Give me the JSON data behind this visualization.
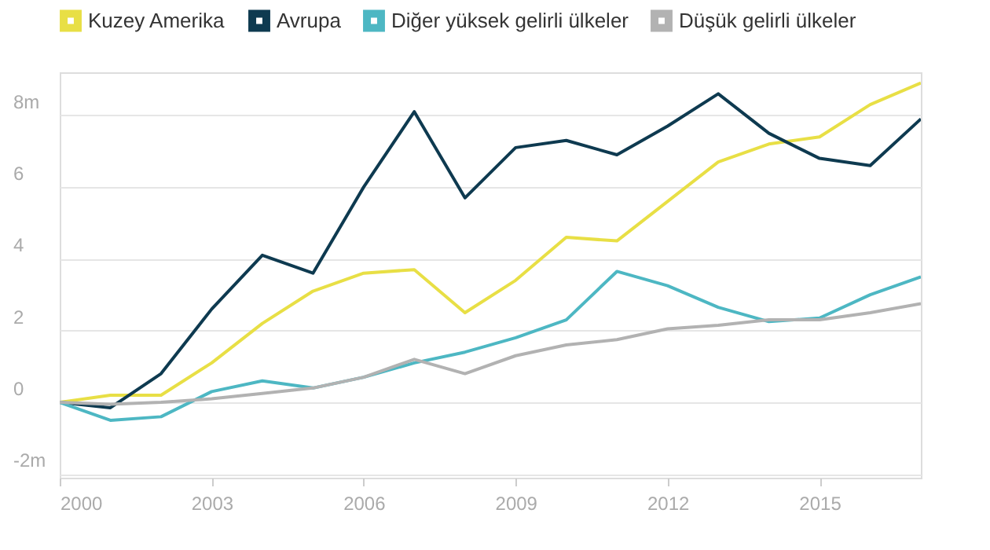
{
  "chart_data": {
    "type": "line",
    "x": [
      2000,
      2001,
      2002,
      2003,
      2004,
      2005,
      2006,
      2007,
      2008,
      2009,
      2010,
      2011,
      2012,
      2013,
      2014,
      2015,
      2016,
      2017
    ],
    "series": [
      {
        "name": "Kuzey Amerika",
        "color": "#e8df45",
        "values": [
          0,
          0.2,
          0.2,
          1.1,
          2.2,
          3.1,
          3.6,
          3.7,
          2.5,
          3.4,
          4.6,
          4.5,
          5.6,
          6.7,
          7.2,
          7.4,
          8.3,
          8.9
        ]
      },
      {
        "name": "Avrupa",
        "color": "#0e3a50",
        "values": [
          0,
          -0.15,
          0.8,
          2.6,
          4.1,
          3.6,
          6.0,
          8.1,
          5.7,
          7.1,
          7.3,
          6.9,
          7.7,
          8.6,
          7.5,
          6.8,
          6.6,
          7.9
        ]
      },
      {
        "name": "Diğer yüksek gelirli ülkeler",
        "color": "#4db7c3",
        "values": [
          0,
          -0.5,
          -0.4,
          0.3,
          0.6,
          0.4,
          0.7,
          1.1,
          1.4,
          1.8,
          2.3,
          3.65,
          3.25,
          2.65,
          2.25,
          2.35,
          3.0,
          3.5
        ]
      },
      {
        "name": "Düşük gelirli ülkeler",
        "color": "#b2b2b2",
        "values": [
          0,
          -0.05,
          0,
          0.1,
          0.25,
          0.4,
          0.7,
          1.2,
          0.8,
          1.3,
          1.6,
          1.75,
          2.05,
          2.15,
          2.3,
          2.3,
          2.5,
          2.75
        ]
      }
    ],
    "xlim": [
      2000,
      2017
    ],
    "xticks": [
      2000,
      2003,
      2006,
      2009,
      2012,
      2015
    ],
    "ylim": [
      -2.1,
      9.2
    ],
    "yticks": [
      {
        "value": -2,
        "label": "-2m"
      },
      0,
      2,
      4,
      6,
      {
        "value": 8,
        "label": "8m"
      }
    ],
    "grid": "y",
    "legend": "top",
    "marker": "none",
    "line_style": "solid"
  }
}
